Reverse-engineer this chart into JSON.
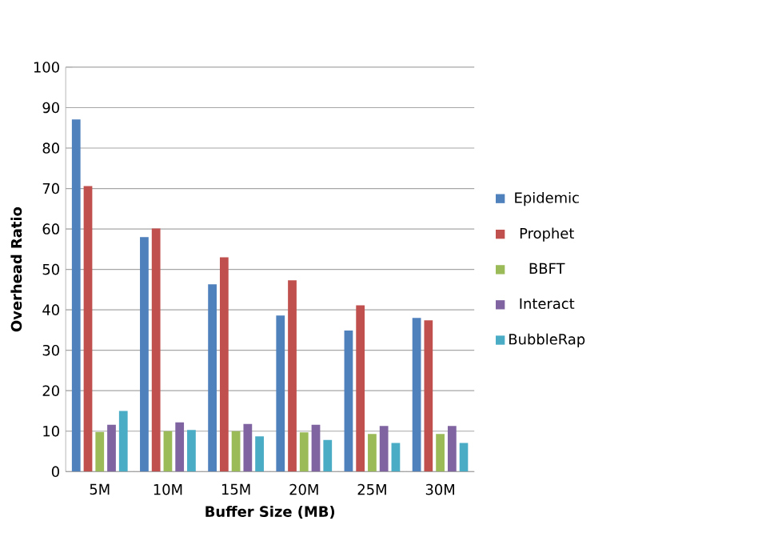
{
  "chart_data": {
    "type": "bar",
    "xlabel": "Buffer Size (MB)",
    "ylabel": "Overhead Ratio",
    "categories": [
      "5M",
      "10M",
      "15M",
      "20M",
      "25M",
      "30M"
    ],
    "series": [
      {
        "name": "Epidemic",
        "color": "#4f81bd",
        "values": [
          87.1,
          58.0,
          46.3,
          38.6,
          34.9,
          38.0
        ]
      },
      {
        "name": "Prophet",
        "color": "#c0504d",
        "values": [
          70.6,
          60.1,
          53.0,
          47.3,
          41.1,
          37.4
        ]
      },
      {
        "name": "BBFT",
        "color": "#9bbb59",
        "values": [
          9.8,
          10.0,
          10.0,
          9.7,
          9.3,
          9.3
        ]
      },
      {
        "name": "Interact",
        "color": "#8064a2",
        "values": [
          11.6,
          12.2,
          11.8,
          11.6,
          11.3,
          11.3
        ]
      },
      {
        "name": "BubbleRap",
        "color": "#4bacc6",
        "values": [
          15.0,
          10.3,
          8.7,
          7.8,
          7.1,
          7.1
        ]
      }
    ],
    "ylim": [
      0,
      100
    ],
    "yticks": [
      0,
      10,
      20,
      30,
      40,
      50,
      60,
      70,
      80,
      90,
      100
    ],
    "grid": "y",
    "legend": "right"
  }
}
